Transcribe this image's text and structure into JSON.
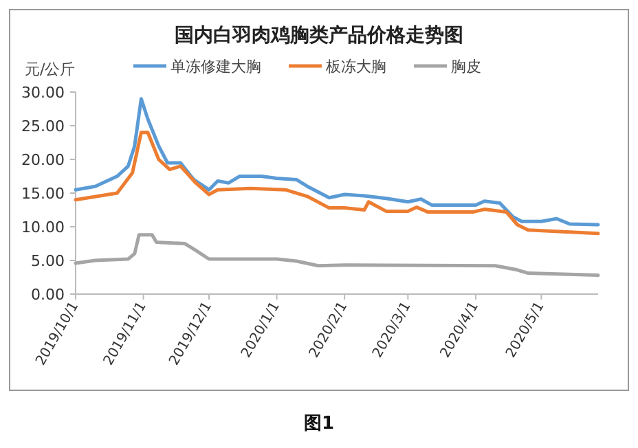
{
  "chart_data": {
    "type": "line",
    "title": "国内白羽肉鸡胸类产品价格走势图",
    "ylabel": "元/公斤",
    "annotations": [
      "图1"
    ],
    "legend": "top",
    "grid": false,
    "marker": "none",
    "line_style": "solid",
    "xlim": [
      "2019-10-01",
      "2020-05-27"
    ],
    "ylim": [
      0,
      30
    ],
    "yticks": [
      {
        "value": 0,
        "label": "0.00"
      },
      {
        "value": 5,
        "label": "5.00"
      },
      {
        "value": 10,
        "label": "10.00"
      },
      {
        "value": 15,
        "label": "15.00"
      },
      {
        "value": 20,
        "label": "20.00"
      },
      {
        "value": 25,
        "label": "25.00"
      },
      {
        "value": 30,
        "label": "30.00"
      }
    ],
    "xticks": [
      {
        "value": "2019-10-01",
        "label": "2019/10/1"
      },
      {
        "value": "2019-11-01",
        "label": "2019/11/1"
      },
      {
        "value": "2019-12-01",
        "label": "2019/12/1"
      },
      {
        "value": "2020-01-01",
        "label": "2020/1/1"
      },
      {
        "value": "2020-02-01",
        "label": "2020/2/1"
      },
      {
        "value": "2020-03-01",
        "label": "2020/3/1"
      },
      {
        "value": "2020-04-01",
        "label": "2020/4/1"
      },
      {
        "value": "2020-05-01",
        "label": "2020/5/1"
      }
    ],
    "series": [
      {
        "name": "单冻修建大胸",
        "color": "#5b9bd5",
        "x": [
          "2019-10-01",
          "2019-10-10",
          "2019-10-20",
          "2019-10-25",
          "2019-10-28",
          "2019-10-31",
          "2019-11-03",
          "2019-11-08",
          "2019-11-12",
          "2019-11-18",
          "2019-11-24",
          "2019-12-01",
          "2019-12-05",
          "2019-12-10",
          "2019-12-15",
          "2019-12-25",
          "2020-01-01",
          "2020-01-10",
          "2020-01-15",
          "2020-01-25",
          "2020-02-01",
          "2020-02-10",
          "2020-02-20",
          "2020-03-01",
          "2020-03-07",
          "2020-03-12",
          "2020-03-20",
          "2020-04-01",
          "2020-04-05",
          "2020-04-12",
          "2020-04-18",
          "2020-04-22",
          "2020-05-01",
          "2020-05-08",
          "2020-05-14",
          "2020-05-27"
        ],
        "values": [
          15.5,
          16,
          17.5,
          19,
          22,
          29,
          26,
          22,
          19.5,
          19.5,
          17,
          15.5,
          16.8,
          16.5,
          17.5,
          17.5,
          17.2,
          17,
          16,
          14.3,
          14.8,
          14.6,
          14.2,
          13.7,
          14.1,
          13.2,
          13.2,
          13.2,
          13.8,
          13.5,
          11.5,
          10.8,
          10.8,
          11.2,
          10.4,
          10.3
        ]
      },
      {
        "name": "板冻大胸",
        "color": "#ed7d31",
        "x": [
          "2019-10-01",
          "2019-10-20",
          "2019-10-27",
          "2019-10-31",
          "2019-11-03",
          "2019-11-08",
          "2019-11-13",
          "2019-11-18",
          "2019-11-25",
          "2019-12-01",
          "2019-12-05",
          "2019-12-20",
          "2020-01-05",
          "2020-01-15",
          "2020-01-25",
          "2020-02-01",
          "2020-02-10",
          "2020-02-12",
          "2020-02-20",
          "2020-03-01",
          "2020-03-05",
          "2020-03-10",
          "2020-03-31",
          "2020-04-05",
          "2020-04-15",
          "2020-04-20",
          "2020-04-25",
          "2020-05-27"
        ],
        "values": [
          14,
          15,
          18,
          24,
          24,
          20,
          18.5,
          19,
          16.5,
          14.8,
          15.5,
          15.7,
          15.5,
          14.5,
          12.8,
          12.8,
          12.5,
          13.7,
          12.3,
          12.3,
          12.9,
          12.2,
          12.2,
          12.6,
          12.2,
          10.3,
          9.5,
          9.0
        ]
      },
      {
        "name": "胸皮",
        "color": "#a5a5a5",
        "x": [
          "2019-10-01",
          "2019-10-10",
          "2019-10-25",
          "2019-10-28",
          "2019-10-30",
          "2019-11-05",
          "2019-11-07",
          "2019-11-20",
          "2019-11-25",
          "2019-12-01",
          "2020-01-01",
          "2020-01-10",
          "2020-01-20",
          "2020-02-01",
          "2020-04-10",
          "2020-04-20",
          "2020-04-25",
          "2020-05-27"
        ],
        "values": [
          4.6,
          5,
          5.2,
          6,
          8.8,
          8.8,
          7.7,
          7.5,
          6.5,
          5.2,
          5.2,
          4.9,
          4.2,
          4.3,
          4.2,
          3.6,
          3.1,
          2.8
        ]
      }
    ]
  }
}
